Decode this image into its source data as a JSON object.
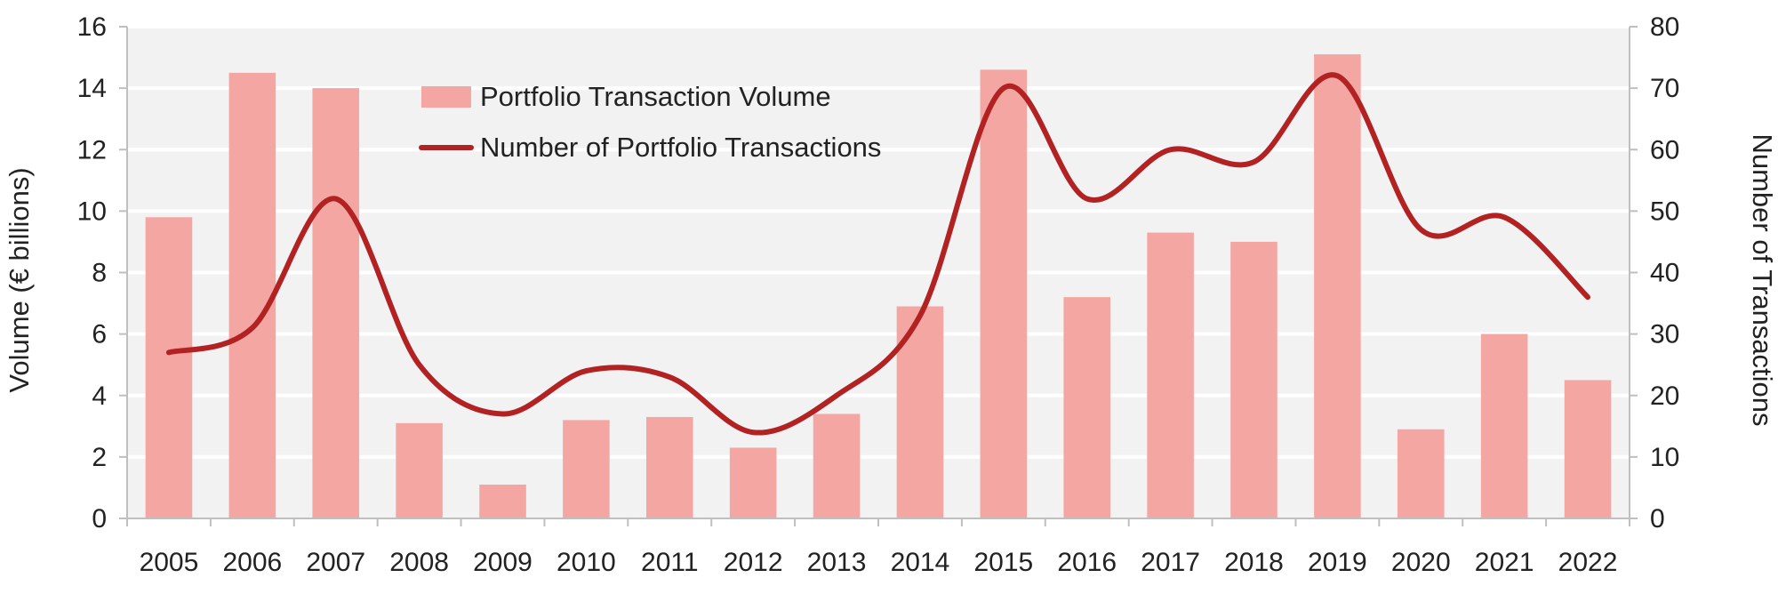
{
  "chart_data": {
    "type": "bar",
    "categories": [
      "2005",
      "2006",
      "2007",
      "2008",
      "2009",
      "2010",
      "2011",
      "2012",
      "2013",
      "2014",
      "2015",
      "2016",
      "2017",
      "2018",
      "2019",
      "2020",
      "2021",
      "2022"
    ],
    "series": [
      {
        "name": "Portfolio Transaction Volume",
        "type": "bar",
        "axis": "left",
        "color": "#f4a6a3",
        "values": [
          9.8,
          14.5,
          14.0,
          3.1,
          1.1,
          3.2,
          3.3,
          2.3,
          3.4,
          6.9,
          14.6,
          7.2,
          9.3,
          9.0,
          15.1,
          2.9,
          6.0,
          4.5
        ]
      },
      {
        "name": "Number of Portfolio Transactions",
        "type": "line",
        "smooth": true,
        "axis": "right",
        "color": "#b22222",
        "values": [
          27,
          31,
          52,
          25,
          17,
          24,
          23,
          14,
          20,
          33,
          70,
          52,
          60,
          58,
          72,
          47,
          49,
          36
        ]
      }
    ],
    "ylabel": "Volume (€ billions)",
    "y2label": "Number of Transactions",
    "ylim": [
      0,
      16
    ],
    "y2lim": [
      0,
      80
    ],
    "yticks": [
      "0",
      "2",
      "4",
      "6",
      "8",
      "10",
      "12",
      "14",
      "16"
    ],
    "y2ticks": [
      "0",
      "10",
      "20",
      "30",
      "40",
      "50",
      "60",
      "70",
      "80"
    ],
    "grid": true,
    "legend": "top-center"
  },
  "legend": {
    "bar_label": "Portfolio Transaction Volume",
    "line_label": "Number of Portfolio Transactions"
  }
}
